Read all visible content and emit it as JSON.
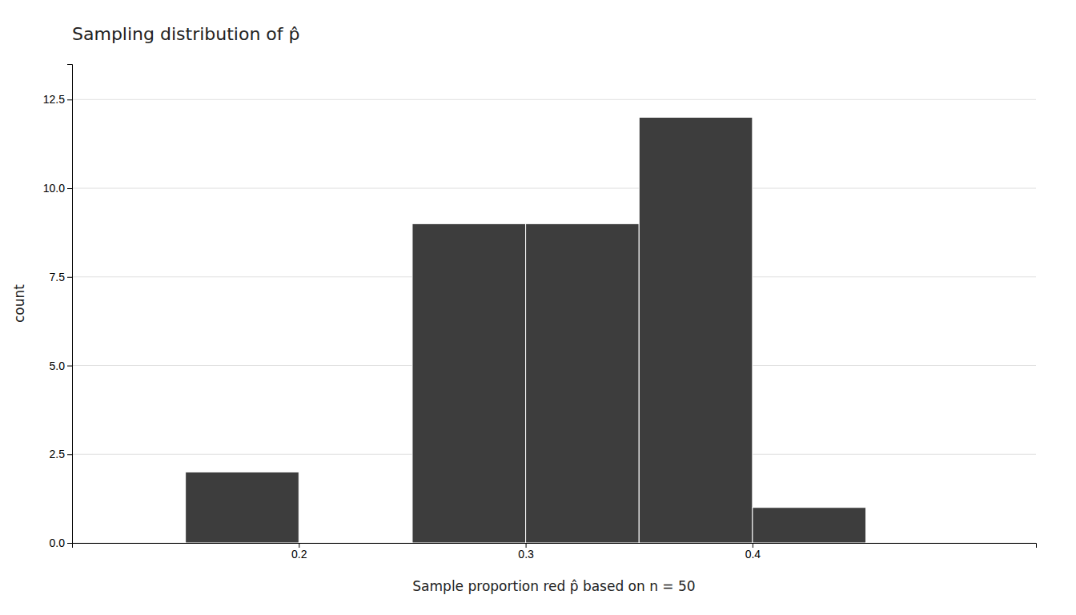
{
  "chart_data": {
    "type": "histogram",
    "title": "Sampling distribution of p̂",
    "xlabel": "Sample proportion red p̂ based on n = 50",
    "ylabel": "count",
    "bins": [
      0.15,
      0.2,
      0.25,
      0.3,
      0.35,
      0.4,
      0.45,
      0.5
    ],
    "values": [
      2,
      0,
      9,
      9,
      12,
      1,
      0
    ],
    "color": "#3d3d3d",
    "xlim": [
      0.1,
      0.525
    ],
    "ylim": [
      0,
      13.5
    ],
    "xticks": [
      0.2,
      0.3,
      0.4
    ],
    "yticks": [
      {
        "value": 0.0,
        "label": "0.0"
      },
      2.5,
      {
        "value": 5.0,
        "label": "5.0"
      },
      7.5,
      {
        "value": 10.0,
        "label": "10.0"
      },
      12.5
    ],
    "grid": true
  }
}
